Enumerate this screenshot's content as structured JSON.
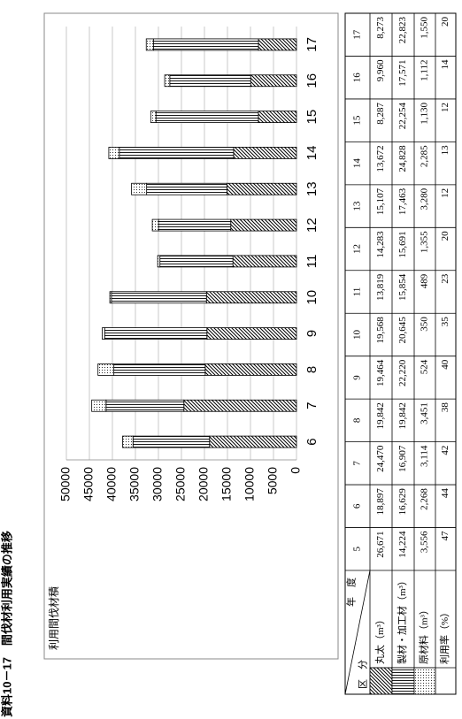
{
  "title": "資料10－17　間伐材利用実績の推移",
  "chart_data": {
    "type": "bar",
    "stacked": true,
    "y_label": "利用間伐材積",
    "categories": [
      "6",
      "7",
      "8",
      "9",
      "10",
      "11",
      "12",
      "13",
      "14",
      "15",
      "16",
      "17"
    ],
    "series": [
      {
        "pattern": "diagonal",
        "values": [
          18897,
          24470,
          19842,
          19464,
          19568,
          13819,
          14283,
          15107,
          13672,
          8287,
          9960,
          8273
        ]
      },
      {
        "pattern": "lines",
        "values": [
          16629,
          16907,
          19842,
          22220,
          20645,
          15854,
          15691,
          17463,
          24828,
          22254,
          17571,
          22823
        ]
      },
      {
        "pattern": "dots",
        "values": [
          2268,
          3114,
          3451,
          524,
          350,
          489,
          1355,
          3280,
          2285,
          1130,
          1112,
          1550
        ]
      }
    ],
    "ylim": [
      0,
      50000
    ],
    "yticks": [
      0,
      5000,
      10000,
      15000,
      20000,
      25000,
      30000,
      35000,
      40000,
      45000,
      50000
    ],
    "grid": true
  },
  "table": {
    "header_year": "年　度",
    "header_category": "区　分",
    "years": [
      "5",
      "6",
      "7",
      "8",
      "9",
      "10",
      "11",
      "12",
      "13",
      "14",
      "15",
      "16",
      "17"
    ],
    "rows": [
      {
        "label": "丸太（m³）",
        "pattern": "diagonal",
        "cells": [
          "26,671",
          "18,897",
          "24,470",
          "19,842",
          "19,464",
          "19,568",
          "13,819",
          "14,283",
          "15,107",
          "13,672",
          "8,287",
          "9,960",
          "8,273"
        ]
      },
      {
        "label": "製材・加工材（m³）",
        "pattern": "lines",
        "cells": [
          "14,224",
          "16,629",
          "16,907",
          "19,842",
          "22,220",
          "20,645",
          "15,854",
          "15,691",
          "17,463",
          "24,828",
          "22,254",
          "17,571",
          "22,823"
        ]
      },
      {
        "label": "原材料（m³）",
        "pattern": "dots",
        "cells": [
          "3,556",
          "2,268",
          "3,114",
          "3,451",
          "524",
          "350",
          "489",
          "1,355",
          "3,280",
          "2,285",
          "1,130",
          "1,112",
          "1,550"
        ]
      },
      {
        "label": "利用率（%）",
        "cells": [
          "47",
          "44",
          "42",
          "38",
          "40",
          "35",
          "23",
          "20",
          "12",
          "13",
          "12",
          "14",
          "20"
        ]
      }
    ]
  }
}
